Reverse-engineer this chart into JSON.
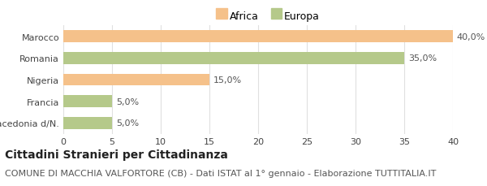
{
  "categories": [
    "Marocco",
    "Romania",
    "Nigeria",
    "Francia",
    "Macedonia d/N."
  ],
  "values": [
    40.0,
    35.0,
    15.0,
    5.0,
    5.0
  ],
  "colors": [
    "#f5c18a",
    "#b5c98a",
    "#f5c18a",
    "#b5c98a",
    "#b5c98a"
  ],
  "continent": [
    "Africa",
    "Europa",
    "Africa",
    "Europa",
    "Europa"
  ],
  "bar_labels": [
    "40,0%",
    "35,0%",
    "15,0%",
    "5,0%",
    "5,0%"
  ],
  "xlim": [
    0,
    40
  ],
  "xticks": [
    0,
    5,
    10,
    15,
    20,
    25,
    30,
    35,
    40
  ],
  "legend_africa_color": "#f5c18a",
  "legend_europa_color": "#b5c98a",
  "title_bold": "Cittadini Stranieri per Cittadinanza",
  "subtitle": "COMUNE DI MACCHIA VALFORTORE (CB) - Dati ISTAT al 1° gennaio - Elaborazione TUTTITALIA.IT",
  "title_fontsize": 10,
  "subtitle_fontsize": 8,
  "label_fontsize": 8,
  "tick_fontsize": 8,
  "legend_fontsize": 9,
  "background_color": "#ffffff",
  "grid_color": "#e0e0e0",
  "bar_height": 0.55
}
